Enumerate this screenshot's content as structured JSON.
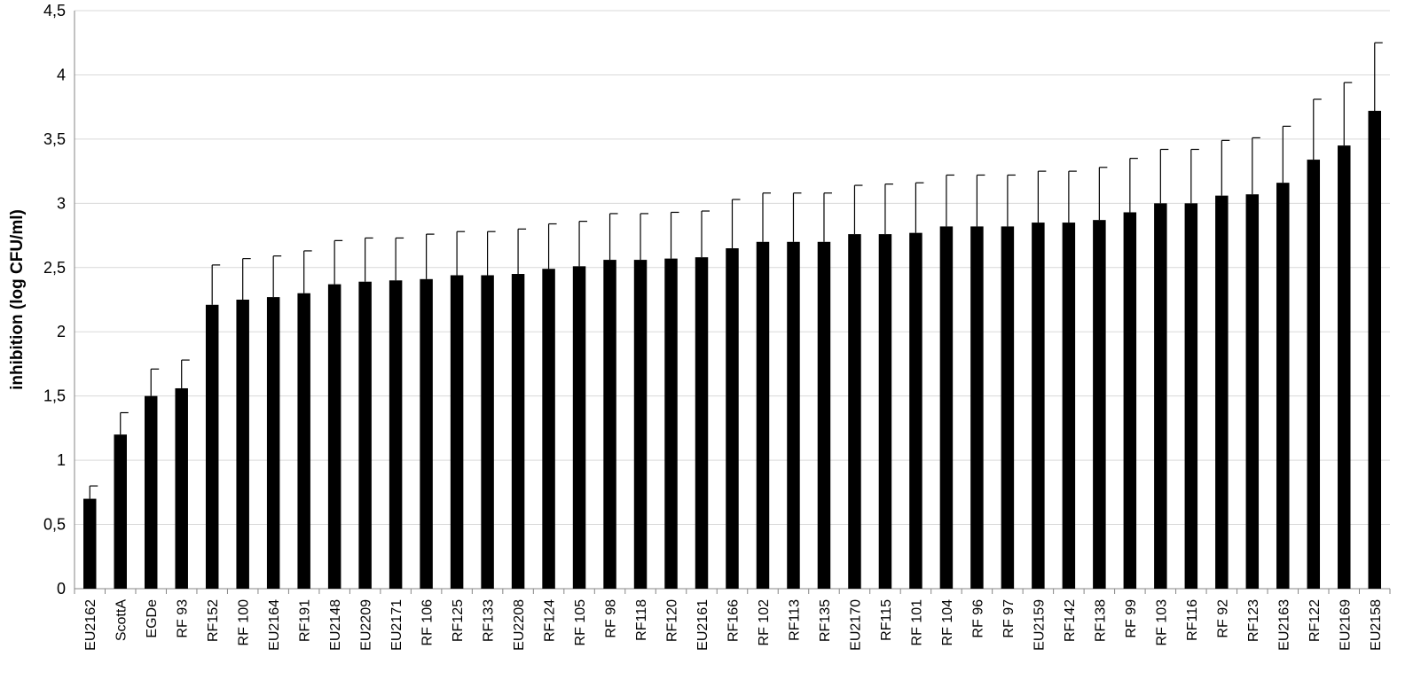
{
  "chart_data": {
    "type": "bar",
    "ylabel": "inhibition (log CFU/ml)",
    "xlabel": "",
    "ylim": [
      0,
      4.5
    ],
    "y_ticks": [
      {
        "value": 0,
        "label": "0"
      },
      {
        "value": 0.5,
        "label": "0,5"
      },
      {
        "value": 1,
        "label": "1"
      },
      {
        "value": 1.5,
        "label": "1,5"
      },
      {
        "value": 2,
        "label": "2"
      },
      {
        "value": 2.5,
        "label": "2,5"
      },
      {
        "value": 3,
        "label": "3"
      },
      {
        "value": 3.5,
        "label": "3,5"
      },
      {
        "value": 4,
        "label": "4"
      },
      {
        "value": 4.5,
        "label": "4,5"
      }
    ],
    "grid": true,
    "bar_color": "#000000",
    "categories": [
      "EU2162",
      "ScottA",
      "EGDe",
      "RF 93",
      "RF152",
      "RF 100",
      "EU2164",
      "RF191",
      "EU2148",
      "EU2209",
      "EU2171",
      "RF 106",
      "RF125",
      "RF133",
      "EU2208",
      "RF124",
      "RF 105",
      "RF 98",
      "RF118",
      "RF120",
      "EU2161",
      "RF166",
      "RF 102",
      "RF113",
      "RF135",
      "EU2170",
      "RF115",
      "RF 101",
      "RF 104",
      "RF 96",
      "RF 97",
      "EU2159",
      "RF142",
      "RF138",
      "RF 99",
      "RF 103",
      "RF116",
      "RF 92",
      "RF123",
      "EU2163",
      "RF122",
      "EU2169",
      "EU2158"
    ],
    "values": [
      0.7,
      1.2,
      1.5,
      1.56,
      2.21,
      2.25,
      2.27,
      2.3,
      2.37,
      2.39,
      2.4,
      2.41,
      2.44,
      2.44,
      2.45,
      2.49,
      2.51,
      2.56,
      2.56,
      2.57,
      2.58,
      2.65,
      2.7,
      2.7,
      2.7,
      2.76,
      2.76,
      2.77,
      2.82,
      2.82,
      2.82,
      2.85,
      2.85,
      2.87,
      2.93,
      3.0,
      3.0,
      3.06,
      3.07,
      3.16,
      3.34,
      3.45,
      3.72
    ],
    "error_upper": [
      0.8,
      1.37,
      1.71,
      1.78,
      2.52,
      2.57,
      2.59,
      2.63,
      2.71,
      2.73,
      2.73,
      2.76,
      2.78,
      2.78,
      2.8,
      2.84,
      2.86,
      2.92,
      2.92,
      2.93,
      2.94,
      3.03,
      3.08,
      3.08,
      3.08,
      3.14,
      3.15,
      3.16,
      3.22,
      3.22,
      3.22,
      3.25,
      3.25,
      3.28,
      3.35,
      3.42,
      3.42,
      3.49,
      3.51,
      3.6,
      3.81,
      3.94,
      4.25
    ]
  }
}
